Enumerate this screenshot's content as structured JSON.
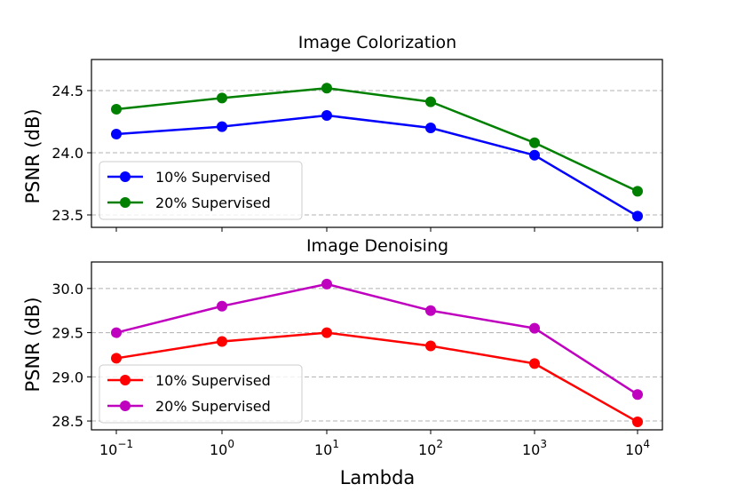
{
  "chart_data": [
    {
      "type": "line",
      "title": "Image Colorization",
      "xlabel": "",
      "ylabel": "PSNR (dB)",
      "x": [
        "10^-1",
        "10^0",
        "10^1",
        "10^2",
        "10^3",
        "10^4"
      ],
      "xscale": "log",
      "ylim": [
        23.4,
        24.75
      ],
      "yticks": [
        "23.5",
        "24.0",
        "24.5"
      ],
      "grid": "horizontal dashed",
      "legend": "lower-left",
      "series": [
        {
          "name": "10% Supervised",
          "color": "#0000ff",
          "values": [
            24.15,
            24.21,
            24.3,
            24.2,
            23.98,
            23.49
          ]
        },
        {
          "name": "20% Supervised",
          "color": "#008000",
          "values": [
            24.35,
            24.44,
            24.52,
            24.41,
            24.08,
            23.69
          ]
        }
      ]
    },
    {
      "type": "line",
      "title": "Image Denoising",
      "xlabel": "Lambda",
      "ylabel": "PSNR (dB)",
      "x": [
        "10^-1",
        "10^0",
        "10^1",
        "10^2",
        "10^3",
        "10^4"
      ],
      "xscale": "log",
      "ylim": [
        28.4,
        30.3
      ],
      "yticks": [
        "28.5",
        "29.0",
        "29.5",
        "30.0"
      ],
      "grid": "horizontal dashed",
      "legend": "lower-left",
      "series": [
        {
          "name": "10% Supervised",
          "color": "#ff0000",
          "values": [
            29.21,
            29.4,
            29.5,
            29.35,
            29.15,
            28.49
          ]
        },
        {
          "name": "20% Supervised",
          "color": "#bf00bf",
          "values": [
            29.5,
            29.8,
            30.05,
            29.75,
            29.55,
            28.8
          ]
        }
      ]
    }
  ],
  "xtick_labels": [
    {
      "base": "10",
      "exp": "−1"
    },
    {
      "base": "10",
      "exp": "0"
    },
    {
      "base": "10",
      "exp": "1"
    },
    {
      "base": "10",
      "exp": "2"
    },
    {
      "base": "10",
      "exp": "3"
    },
    {
      "base": "10",
      "exp": "4"
    }
  ]
}
